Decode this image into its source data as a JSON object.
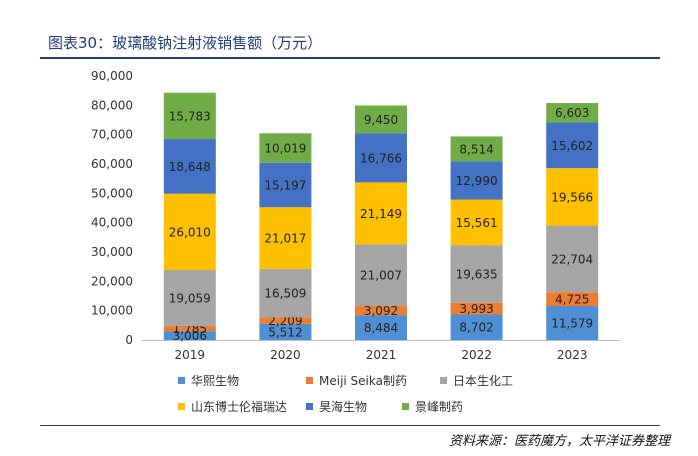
{
  "title": "图表30：玻璃酸钠注射液销售额（万元）",
  "source": "资料来源：医药魔方，太平洋证券整理",
  "chart_data": {
    "type": "bar",
    "stacked": true,
    "categories": [
      "2019",
      "2020",
      "2021",
      "2022",
      "2023"
    ],
    "ylim": [
      0,
      90000
    ],
    "yticks": [
      0,
      10000,
      20000,
      30000,
      40000,
      50000,
      60000,
      70000,
      80000,
      90000
    ],
    "ytick_labels": [
      "0",
      "10,000",
      "20,000",
      "30,000",
      "40,000",
      "50,000",
      "60,000",
      "70,000",
      "80,000",
      "90,000"
    ],
    "grid": false,
    "legend_position": "bottom",
    "series": [
      {
        "name": "华熙生物",
        "color": "#4f8fd3",
        "values": [
          3006,
          5512,
          8484,
          8702,
          11579
        ],
        "labels": [
          "3,006",
          "5,512",
          "8,484",
          "8,702",
          "11,579"
        ]
      },
      {
        "name": "Meiji Seika制药",
        "color": "#ed7d31",
        "values": [
          1785,
          2209,
          3092,
          3993,
          4725
        ],
        "labels": [
          "1,785",
          "2,209",
          "3,092",
          "3,993",
          "4,725"
        ]
      },
      {
        "name": "日本生化工",
        "color": "#a5a5a5",
        "values": [
          19059,
          16509,
          21007,
          19635,
          22704
        ],
        "labels": [
          "19,059",
          "16,509",
          "21,007",
          "19,635",
          "22,704"
        ]
      },
      {
        "name": "山东博士伦福瑞达",
        "color": "#ffc000",
        "values": [
          26010,
          21017,
          21149,
          15561,
          19566
        ],
        "labels": [
          "26,010",
          "21,017",
          "21,149",
          "15,561",
          "19,566"
        ]
      },
      {
        "name": "昊海生物",
        "color": "#4472c4",
        "values": [
          18648,
          15197,
          16766,
          12990,
          15602
        ],
        "labels": [
          "18,648",
          "15,197",
          "16,766",
          "12,990",
          "15,602"
        ]
      },
      {
        "name": "景峰制药",
        "color": "#70ad47",
        "values": [
          15783,
          10019,
          9450,
          8514,
          6603
        ],
        "labels": [
          "15,783",
          "10,019",
          "9,450",
          "8,514",
          "6,603"
        ]
      }
    ]
  }
}
